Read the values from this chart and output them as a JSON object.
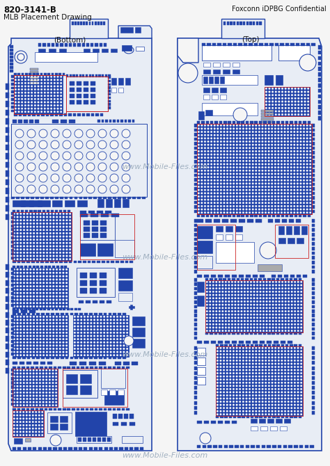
{
  "title_left1": "820-3141-B",
  "title_left2": "MLB Placement Drawing",
  "title_right": "Foxconn iDPBG Confidential",
  "label_bottom": "(Bottom)",
  "label_top": "(Top)",
  "watermark": "www.Mobile-Files.com",
  "bg_color": "#f5f5f5",
  "board_color": "#e8edf5",
  "line_color": "#2244aa",
  "component_fill": "#2244aa",
  "component_light": "#7799cc",
  "component_white": "#ffffff",
  "red_accent": "#cc2222",
  "outline_color": "#2244aa",
  "text_color": "#111111",
  "watermark_color": "#99aabb",
  "gray_color": "#aaaaaa"
}
